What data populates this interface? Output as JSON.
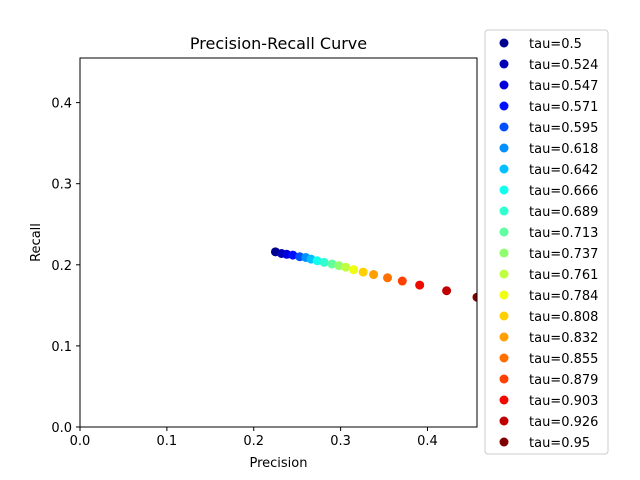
{
  "chart_data": {
    "type": "scatter",
    "title": "Precision-Recall Curve",
    "xlabel": "Precision",
    "ylabel": "Recall",
    "xlim": [
      0.0,
      0.457
    ],
    "ylim": [
      0.0,
      0.455
    ],
    "xticks": [
      "0.0",
      "0.1",
      "0.2",
      "0.3",
      "0.4"
    ],
    "yticks": [
      "0.0",
      "0.1",
      "0.2",
      "0.3",
      "0.4"
    ],
    "xtick_values": [
      0.0,
      0.1,
      0.2,
      0.3,
      0.4
    ],
    "ytick_values": [
      0.0,
      0.1,
      0.2,
      0.3,
      0.4
    ],
    "grid": false,
    "legend_position": "outside-right",
    "series": [
      {
        "name": "tau=0.5",
        "color": "#00008f",
        "x": [
          0.225
        ],
        "y": [
          0.216
        ]
      },
      {
        "name": "tau=0.524",
        "color": "#0000b4",
        "x": [
          0.232
        ],
        "y": [
          0.214
        ]
      },
      {
        "name": "tau=0.547",
        "color": "#0000db",
        "x": [
          0.238
        ],
        "y": [
          0.213
        ]
      },
      {
        "name": "tau=0.571",
        "color": "#0010ff",
        "x": [
          0.245
        ],
        "y": [
          0.212
        ]
      },
      {
        "name": "tau=0.595",
        "color": "#0050ff",
        "x": [
          0.253
        ],
        "y": [
          0.21
        ]
      },
      {
        "name": "tau=0.618",
        "color": "#0090ff",
        "x": [
          0.26
        ],
        "y": [
          0.209
        ]
      },
      {
        "name": "tau=0.642",
        "color": "#00c0ff",
        "x": [
          0.266
        ],
        "y": [
          0.207
        ]
      },
      {
        "name": "tau=0.666",
        "color": "#10ffef",
        "x": [
          0.273
        ],
        "y": [
          0.205
        ]
      },
      {
        "name": "tau=0.689",
        "color": "#30ffcf",
        "x": [
          0.281
        ],
        "y": [
          0.203
        ]
      },
      {
        "name": "tau=0.713",
        "color": "#60ff9f",
        "x": [
          0.29
        ],
        "y": [
          0.201
        ]
      },
      {
        "name": "tau=0.737",
        "color": "#8fff70",
        "x": [
          0.298
        ],
        "y": [
          0.199
        ]
      },
      {
        "name": "tau=0.761",
        "color": "#bfff40",
        "x": [
          0.306
        ],
        "y": [
          0.197
        ]
      },
      {
        "name": "tau=0.784",
        "color": "#efff10",
        "x": [
          0.315
        ],
        "y": [
          0.194
        ]
      },
      {
        "name": "tau=0.808",
        "color": "#ffcf00",
        "x": [
          0.326
        ],
        "y": [
          0.191
        ]
      },
      {
        "name": "tau=0.832",
        "color": "#ff9f00",
        "x": [
          0.338
        ],
        "y": [
          0.188
        ]
      },
      {
        "name": "tau=0.855",
        "color": "#ff7000",
        "x": [
          0.354
        ],
        "y": [
          0.184
        ]
      },
      {
        "name": "tau=0.879",
        "color": "#ff4000",
        "x": [
          0.371
        ],
        "y": [
          0.18
        ]
      },
      {
        "name": "tau=0.903",
        "color": "#ef0a00",
        "x": [
          0.391
        ],
        "y": [
          0.175
        ]
      },
      {
        "name": "tau=0.926",
        "color": "#c00000",
        "x": [
          0.422
        ],
        "y": [
          0.168
        ]
      },
      {
        "name": "tau=0.95",
        "color": "#800000",
        "x": [
          0.457
        ],
        "y": [
          0.16
        ]
      }
    ]
  }
}
